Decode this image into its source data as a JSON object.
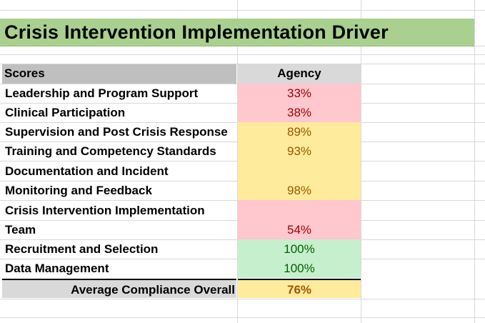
{
  "title": "Crisis Intervention Implementation Driver",
  "header": {
    "scores": "Scores",
    "agency": "Agency"
  },
  "rows": [
    {
      "label": "Leadership and Program Support",
      "value": "33%",
      "status": "red"
    },
    {
      "label": "Clinical Participation",
      "value": "38%",
      "status": "red"
    },
    {
      "label": "Supervision and Post Crisis Response",
      "value": "89%",
      "status": "yellow"
    },
    {
      "label": "Training and Competency Standards",
      "value": "93%",
      "status": "yellow"
    },
    {
      "label_line1": "Documentation and Incident",
      "label_line2": "Monitoring and Feedback",
      "value": "98%",
      "status": "yellow"
    },
    {
      "label_line1": "Crisis Intervention Implementation",
      "label_line2": "Team",
      "value": "54%",
      "status": "red"
    },
    {
      "label": "Recruitment and Selection",
      "value": "100%",
      "status": "green"
    },
    {
      "label": "Data Management",
      "value": "100%",
      "status": "green"
    }
  ],
  "average": {
    "label": "Average Compliance Overall",
    "value": "76%"
  },
  "colors": {
    "title_fill": "#a9d08e",
    "red_fill": "#ffc7ce",
    "red_text": "#9c0006",
    "yellow_fill": "#ffeb9c",
    "yellow_text": "#9c5700",
    "green_fill": "#c6efce",
    "green_text": "#006100"
  }
}
